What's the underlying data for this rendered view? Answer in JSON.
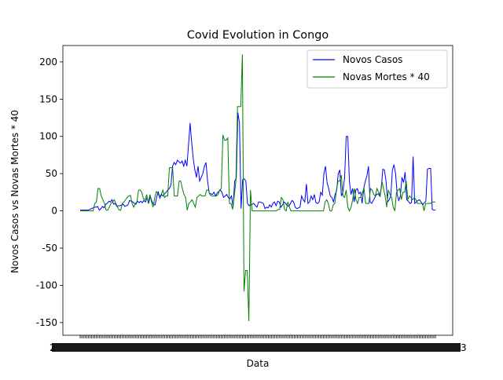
{
  "chart_data": {
    "type": "line",
    "title": "Covid Evolution in Congo",
    "xlabel": "Data",
    "ylabel": "Novos Casos vs Novas Mortes * 40",
    "ylim": [
      -167,
      222
    ],
    "y_ticks": [
      -150,
      -100,
      -50,
      0,
      50,
      100,
      150,
      200
    ],
    "x_tick_count": 220,
    "x_label_fragments": {
      "left": "2",
      "right": "3"
    },
    "grid": false,
    "legend_position": "top-right",
    "series": [
      {
        "name": "Novos Casos",
        "color": "#0000ff",
        "values": [
          1,
          1,
          1,
          1,
          1,
          1,
          2,
          3,
          4,
          5,
          5,
          6,
          1,
          3,
          6,
          4,
          9,
          10,
          13,
          12,
          15,
          9,
          10,
          6,
          7,
          7,
          8,
          9,
          6,
          7,
          8,
          14,
          13,
          12,
          10,
          9,
          13,
          11,
          13,
          11,
          14,
          12,
          18,
          10,
          20,
          13,
          9,
          8,
          18,
          26,
          17,
          22,
          20,
          23,
          25,
          28,
          30,
          35,
          60,
          65,
          62,
          68,
          66,
          64,
          67,
          60,
          68,
          60,
          88,
          118,
          92,
          70,
          55,
          45,
          60,
          40,
          45,
          50,
          60,
          65,
          40,
          24,
          23,
          22,
          25,
          20,
          24,
          26,
          28,
          25,
          18,
          20,
          22,
          18,
          16,
          20,
          5,
          40,
          44,
          132,
          118,
          3,
          42,
          43,
          40,
          10,
          7,
          8,
          9,
          10,
          7,
          5,
          12,
          12,
          11,
          10,
          3,
          5,
          4,
          8,
          5,
          10,
          12,
          7,
          13,
          12,
          5,
          8,
          12,
          10,
          7,
          6,
          10,
          14,
          12,
          5,
          3,
          4,
          5,
          20,
          15,
          12,
          36,
          10,
          12,
          20,
          15,
          22,
          11,
          10,
          12,
          25,
          21,
          50,
          60,
          38,
          30,
          20,
          18,
          12,
          22,
          27,
          50,
          55,
          20,
          26,
          45,
          100,
          100,
          40,
          22,
          30,
          12,
          28,
          30,
          23,
          25,
          10,
          30,
          40,
          47,
          60,
          12,
          10,
          14,
          18,
          22,
          23,
          20,
          30,
          56,
          55,
          40,
          12,
          15,
          20,
          55,
          62,
          50,
          22,
          14,
          20,
          45,
          38,
          52,
          15,
          13,
          10,
          11,
          73,
          10,
          12,
          14,
          15,
          12,
          8,
          11,
          13,
          56,
          57,
          57,
          2,
          1,
          1
        ]
      },
      {
        "name": "Novas Mortes * 40",
        "color": "#008000",
        "values": [
          0,
          0,
          0,
          0,
          0,
          0,
          0,
          0,
          0,
          10,
          12,
          30,
          30,
          20,
          15,
          10,
          1,
          1,
          5,
          10,
          12,
          15,
          10,
          5,
          1,
          1,
          10,
          12,
          15,
          18,
          20,
          21,
          10,
          5,
          10,
          12,
          28,
          28,
          25,
          16,
          15,
          22,
          10,
          22,
          12,
          5,
          18,
          26,
          22,
          20,
          22,
          28,
          18,
          20,
          20,
          58,
          58,
          58,
          20,
          20,
          20,
          40,
          40,
          30,
          22,
          18,
          1,
          10,
          12,
          15,
          10,
          5,
          18,
          20,
          22,
          20,
          20,
          20,
          28,
          28,
          22,
          20,
          20,
          20,
          20,
          22,
          28,
          30,
          102,
          95,
          95,
          98,
          10,
          10,
          2,
          20,
          40,
          140,
          140,
          140,
          210,
          -108,
          -80,
          -80,
          -148,
          28,
          0,
          0,
          0,
          0,
          0,
          0,
          0,
          0,
          0,
          0,
          0,
          0,
          0,
          0,
          0,
          0,
          2,
          2,
          18,
          15,
          2,
          0,
          12,
          5,
          0,
          0,
          0,
          0,
          0,
          0,
          0,
          0,
          0,
          0,
          0,
          0,
          0,
          0,
          0,
          0,
          0,
          0,
          0,
          0,
          0,
          12,
          15,
          10,
          0,
          0,
          8,
          10,
          28,
          40,
          40,
          48,
          20,
          18,
          28,
          5,
          0,
          5,
          15,
          30,
          15,
          10,
          18,
          18,
          25,
          30,
          10,
          10,
          10,
          30,
          28,
          22,
          20,
          30,
          25,
          20,
          40,
          30,
          20,
          5,
          28,
          22,
          18,
          5,
          0,
          25,
          28,
          30,
          15,
          25,
          25,
          40,
          15,
          20,
          18,
          15,
          18,
          15,
          10,
          10,
          10,
          10,
          0,
          10,
          10,
          10,
          10,
          12,
          12,
          12
        ]
      }
    ]
  }
}
